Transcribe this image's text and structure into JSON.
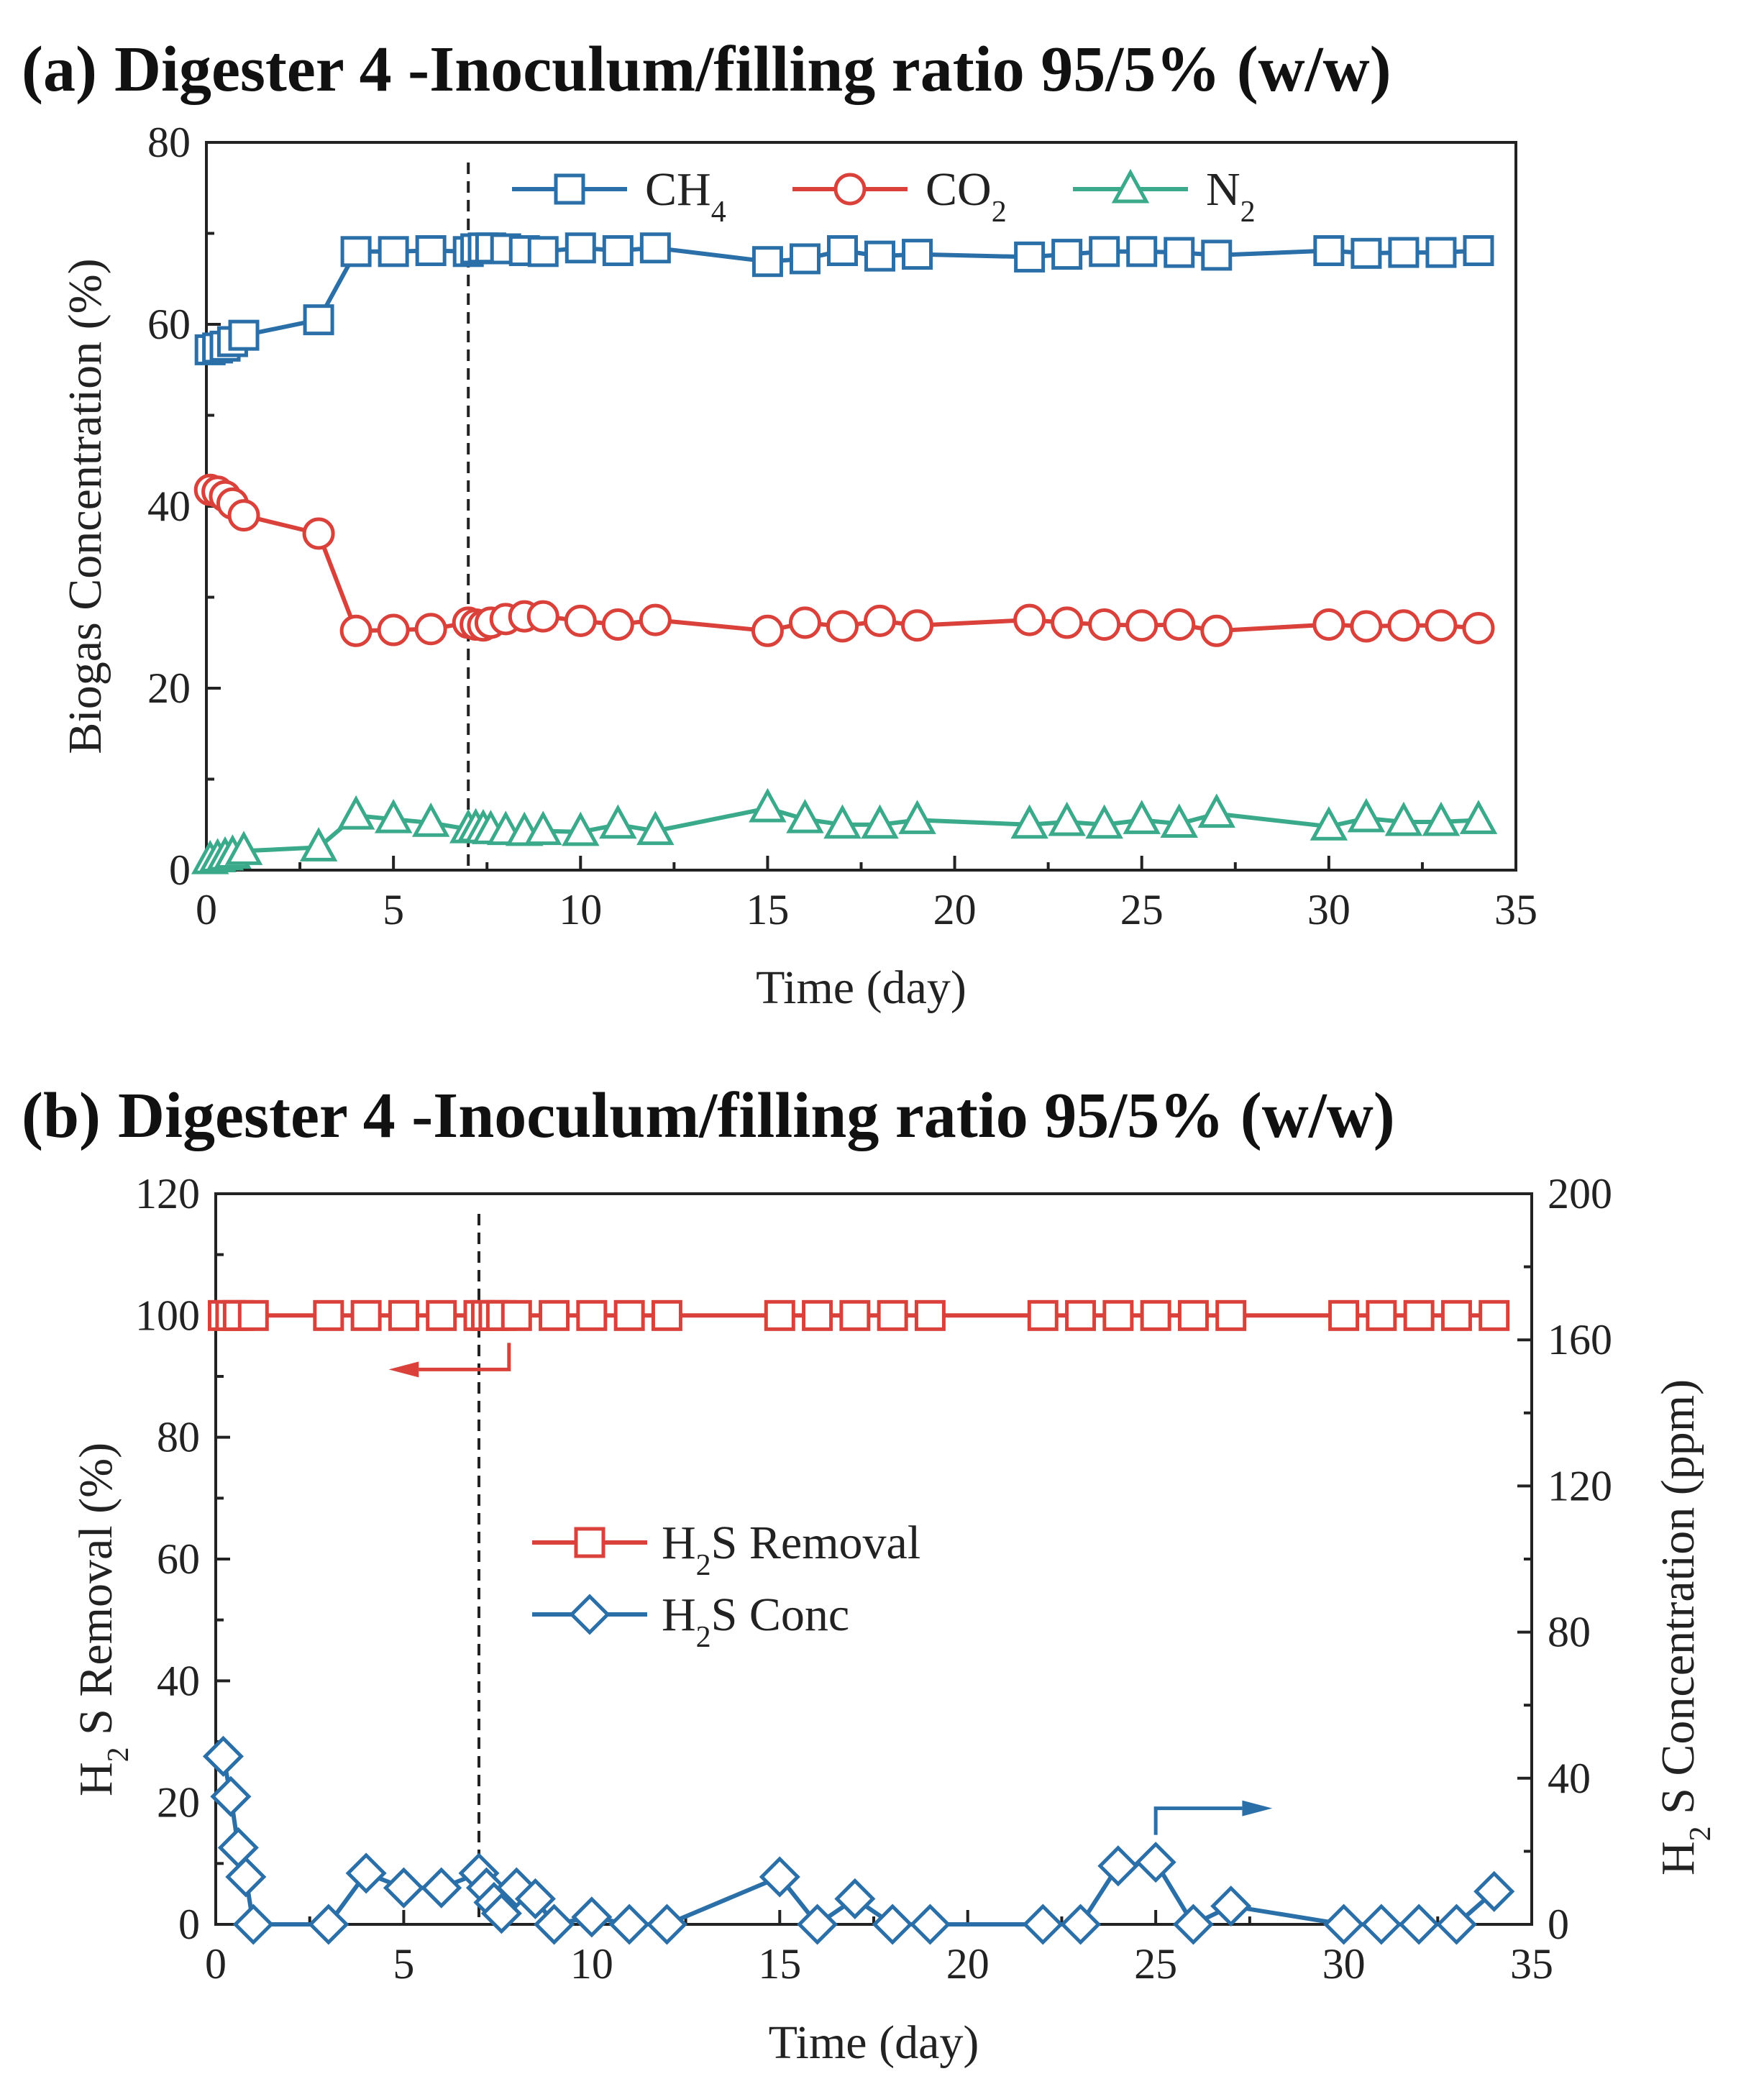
{
  "panels": [
    {
      "letter": "(a)",
      "title": "Digester 4 -Inoculum/filling ratio 95/5% (w/w)"
    },
    {
      "letter": "(b)",
      "title": "Digester 4 -Inoculum/filling ratio 95/5% (w/w)"
    }
  ],
  "colors": {
    "ch4": "#2a6fa8",
    "co2": "#d9413a",
    "n2": "#3aaa8a",
    "removal": "#d9413a",
    "conc": "#2a6fa8"
  },
  "chart_data": [
    {
      "type": "line",
      "title": "Digester 4 -Inoculum/filling ratio 95/5% (w/w)",
      "xlabel": "Time (day)",
      "ylabel": "Biogas Concentration (%)",
      "xlim": [
        0,
        35
      ],
      "ylim": [
        0,
        80
      ],
      "xticks": [
        "0",
        "5",
        "10",
        "15",
        "20",
        "25",
        "30",
        "35"
      ],
      "yticks": [
        "0",
        "20",
        "40",
        "60",
        "80"
      ],
      "vline_x": 7,
      "legend": [
        {
          "key": "ch4",
          "label": "CH",
          "sub": "4",
          "marker": "square"
        },
        {
          "key": "co2",
          "label": "CO",
          "sub": "2",
          "marker": "circle"
        },
        {
          "key": "n2",
          "label": "N",
          "sub": "2",
          "marker": "triangle"
        }
      ],
      "x": [
        0.1,
        0.3,
        0.5,
        0.7,
        1,
        3,
        4,
        5,
        6,
        7,
        7.2,
        7.4,
        7.6,
        8,
        8.5,
        9,
        10,
        11,
        12,
        15,
        16,
        17,
        18,
        19,
        22,
        23,
        24,
        25,
        26,
        27,
        30,
        31,
        32,
        33,
        34
      ],
      "series": [
        {
          "key": "ch4",
          "name": "CH4",
          "marker": "square",
          "values": [
            57.2,
            57.4,
            57.6,
            58.1,
            58.8,
            60.5,
            68.0,
            68.0,
            68.1,
            68.0,
            68.3,
            68.4,
            68.4,
            68.3,
            68.1,
            68.0,
            68.4,
            68.1,
            68.4,
            66.9,
            67.2,
            68.1,
            67.5,
            67.7,
            67.4,
            67.7,
            68.0,
            68.0,
            67.9,
            67.6,
            68.1,
            67.8,
            67.9,
            67.9,
            68.1
          ]
        },
        {
          "key": "co2",
          "name": "CO2",
          "marker": "circle",
          "values": [
            41.8,
            41.6,
            41.1,
            40.3,
            39.0,
            37.0,
            26.3,
            26.4,
            26.5,
            27.2,
            27.0,
            26.9,
            27.2,
            27.6,
            27.9,
            27.9,
            27.4,
            27.0,
            27.5,
            26.3,
            27.2,
            26.8,
            27.4,
            26.9,
            27.5,
            27.2,
            27.0,
            26.9,
            27.0,
            26.3,
            27.0,
            26.8,
            26.9,
            26.9,
            26.6
          ]
        },
        {
          "key": "n2",
          "name": "N2",
          "marker": "triangle",
          "values": [
            1.1,
            1.3,
            1.5,
            1.7,
            2.1,
            2.5,
            6.0,
            5.6,
            5.2,
            4.5,
            4.6,
            4.5,
            4.4,
            4.3,
            4.2,
            4.3,
            4.2,
            5.0,
            4.3,
            6.8,
            5.6,
            5.0,
            5.0,
            5.5,
            5.0,
            5.3,
            5.0,
            5.5,
            5.1,
            6.2,
            4.8,
            5.7,
            5.3,
            5.3,
            5.5
          ]
        }
      ]
    },
    {
      "type": "line",
      "title": "Digester 4 -Inoculum/filling ratio 95/5% (w/w)",
      "xlabel": "Time (day)",
      "ylabel_left": "H S Removal (%)",
      "ylabel_left_sub": "2",
      "ylabel_right": "H S Concentration (ppm)",
      "ylabel_right_sub": "2",
      "xlim": [
        0,
        35
      ],
      "ylim_left": [
        0,
        120
      ],
      "ylim_right": [
        0,
        200
      ],
      "xticks": [
        "0",
        "5",
        "10",
        "15",
        "20",
        "25",
        "30",
        "35"
      ],
      "yticks_left": [
        "0",
        "20",
        "40",
        "60",
        "80",
        "100",
        "120"
      ],
      "yticks_right": [
        "0",
        "40",
        "80",
        "120",
        "160",
        "200"
      ],
      "vline_x": 7,
      "legend": [
        {
          "key": "removal",
          "label": "H",
          "sub": "2",
          "rest": "S Removal",
          "marker": "square"
        },
        {
          "key": "conc",
          "label": "H",
          "sub": "2",
          "rest": "S Conc",
          "marker": "diamond"
        }
      ],
      "series": [
        {
          "key": "removal",
          "name": "H2S Removal",
          "axis": "left",
          "marker": "square",
          "x": [
            0.2,
            0.4,
            0.6,
            1,
            3,
            4,
            5,
            6,
            7,
            7.2,
            7.4,
            7.6,
            8,
            9,
            10,
            11,
            12,
            15,
            16,
            17,
            18,
            19,
            22,
            23,
            24,
            25,
            26,
            27,
            30,
            31,
            32,
            33,
            34
          ],
          "values": [
            100,
            100,
            100,
            100,
            100,
            100,
            100,
            100,
            100,
            100,
            100,
            100,
            100,
            100,
            100,
            100,
            100,
            100,
            100,
            100,
            100,
            100,
            100,
            100,
            100,
            100,
            100,
            100,
            100,
            100,
            100,
            100,
            100
          ]
        },
        {
          "key": "conc",
          "name": "H2S Conc",
          "axis": "right",
          "marker": "diamond",
          "x": [
            0.2,
            0.4,
            0.6,
            0.8,
            1,
            3,
            4,
            5,
            6,
            7,
            7.2,
            7.4,
            7.6,
            8,
            8.5,
            9,
            10,
            11,
            12,
            15,
            16,
            17,
            18,
            19,
            22,
            23,
            24,
            25,
            26,
            27,
            30,
            31,
            32,
            33,
            34
          ],
          "values": [
            46,
            35,
            21,
            13,
            0,
            0,
            14,
            10,
            10,
            14,
            10,
            6,
            3,
            10,
            7,
            0,
            2,
            0,
            0,
            13,
            0,
            7,
            0,
            0,
            0,
            0,
            16,
            17,
            0,
            5,
            0,
            0,
            0,
            0,
            9
          ]
        }
      ]
    }
  ]
}
